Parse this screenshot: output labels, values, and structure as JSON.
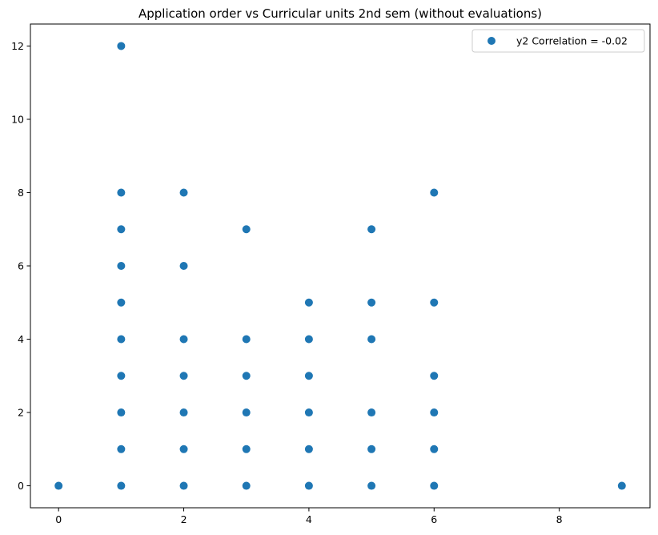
{
  "chart_data": {
    "type": "scatter",
    "title": "Application order vs Curricular units 2nd sem (without evaluations)",
    "xlabel": "",
    "ylabel": "",
    "xlim": [
      -0.45,
      9.45
    ],
    "ylim": [
      -0.6,
      12.6
    ],
    "xticks": [
      0,
      2,
      4,
      6,
      8
    ],
    "yticks": [
      0,
      2,
      4,
      6,
      8,
      10,
      12
    ],
    "grid": false,
    "legend_position": "top-right",
    "series": [
      {
        "name": "y2 Correlation = -0.02",
        "color": "#1f77b4",
        "points": [
          [
            0,
            0
          ],
          [
            1,
            0
          ],
          [
            1,
            1
          ],
          [
            1,
            2
          ],
          [
            1,
            3
          ],
          [
            1,
            4
          ],
          [
            1,
            5
          ],
          [
            1,
            6
          ],
          [
            1,
            7
          ],
          [
            1,
            8
          ],
          [
            1,
            12
          ],
          [
            2,
            0
          ],
          [
            2,
            1
          ],
          [
            2,
            2
          ],
          [
            2,
            3
          ],
          [
            2,
            4
          ],
          [
            2,
            6
          ],
          [
            2,
            8
          ],
          [
            3,
            0
          ],
          [
            3,
            1
          ],
          [
            3,
            2
          ],
          [
            3,
            3
          ],
          [
            3,
            4
          ],
          [
            3,
            7
          ],
          [
            4,
            0
          ],
          [
            4,
            1
          ],
          [
            4,
            2
          ],
          [
            4,
            3
          ],
          [
            4,
            4
          ],
          [
            4,
            5
          ],
          [
            5,
            0
          ],
          [
            5,
            1
          ],
          [
            5,
            2
          ],
          [
            5,
            4
          ],
          [
            5,
            5
          ],
          [
            5,
            7
          ],
          [
            6,
            0
          ],
          [
            6,
            1
          ],
          [
            6,
            2
          ],
          [
            6,
            3
          ],
          [
            6,
            5
          ],
          [
            6,
            8
          ],
          [
            9,
            0
          ]
        ]
      }
    ]
  }
}
